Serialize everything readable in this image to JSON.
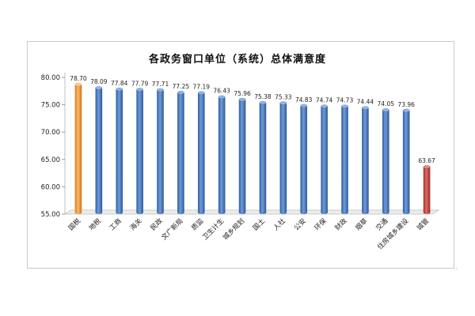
{
  "chart_data": {
    "type": "bar",
    "title": "各政务窗口单位（系统）总体满意度",
    "categories": [
      "国税",
      "地税",
      "工商",
      "海关",
      "民政",
      "文广新局",
      "质监",
      "卫生计生",
      "城乡规划",
      "国土",
      "人社",
      "公安",
      "环保",
      "财政",
      "烟草",
      "交通",
      "住房城乡建设",
      "城管"
    ],
    "values": [
      78.7,
      78.09,
      77.84,
      77.79,
      77.71,
      77.25,
      77.19,
      76.43,
      75.96,
      75.38,
      75.33,
      74.83,
      74.74,
      74.73,
      74.44,
      74.05,
      73.96,
      63.67
    ],
    "value_labels": [
      "78.70",
      "78.09",
      "77.84",
      "77.79",
      "77.71",
      "77.25",
      "77.19",
      "76.43",
      "75.96",
      "75.38",
      "75.33",
      "74.83",
      "74.74",
      "74.73",
      "74.44",
      "74.05",
      "73.96",
      "63.67"
    ],
    "y_ticks": [
      "55.00",
      "60.00",
      "65.00",
      "70.00",
      "75.00",
      "80.00"
    ],
    "ylim": [
      55,
      80
    ],
    "xlabel": "",
    "ylabel": "",
    "grid": false,
    "legend": "none",
    "colors": {
      "default": "#4a7bc4",
      "highest": "#f59a3c",
      "lowest": "#c0504d"
    },
    "highlight": {
      "highest_index": 0,
      "lowest_index": 17
    }
  }
}
